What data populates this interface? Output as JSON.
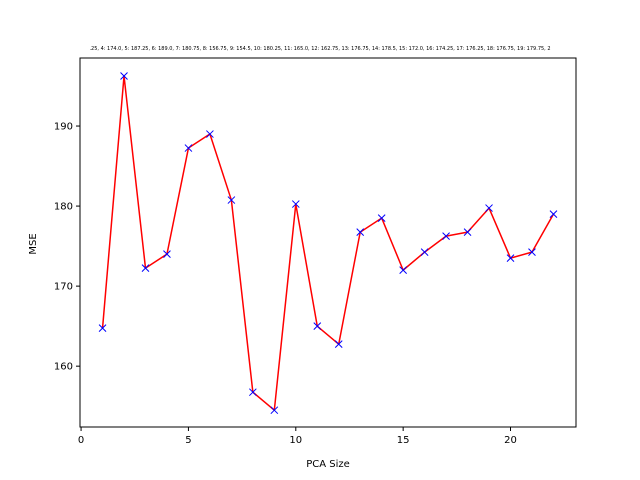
{
  "chart_data": {
    "type": "line",
    "title": ".25, 4: 174.0, 5: 187.25, 6: 189.0, 7: 180.75, 8: 156.75, 9: 154.5, 10: 180.25, 11: 165.0, 12: 162.75, 13: 176.75, 14: 178.5, 15: 172.0, 16: 174.25, 17: 176.25, 18: 176.75, 19: 179.75, 2",
    "xlabel": "PCA Size",
    "ylabel": "MSE",
    "xlim": [
      -0.05,
      23.05
    ],
    "ylim": [
      152.4,
      198.5
    ],
    "xticks": [
      0,
      5,
      10,
      15,
      20
    ],
    "yticks": [
      160,
      170,
      180,
      190
    ],
    "grid": false,
    "series": [
      {
        "line_color": "#ff0000",
        "marker": "x",
        "marker_color": "#0000ff",
        "x": [
          1,
          2,
          3,
          4,
          5,
          6,
          7,
          8,
          9,
          10,
          11,
          12,
          13,
          14,
          15,
          16,
          17,
          18,
          19,
          20,
          21,
          22
        ],
        "y": [
          164.75,
          196.25,
          172.25,
          174.0,
          187.25,
          189.0,
          180.75,
          156.75,
          154.5,
          180.25,
          165.0,
          162.75,
          176.75,
          178.5,
          172.0,
          174.25,
          176.25,
          176.75,
          179.75,
          173.5,
          174.25,
          179.0
        ]
      }
    ]
  }
}
